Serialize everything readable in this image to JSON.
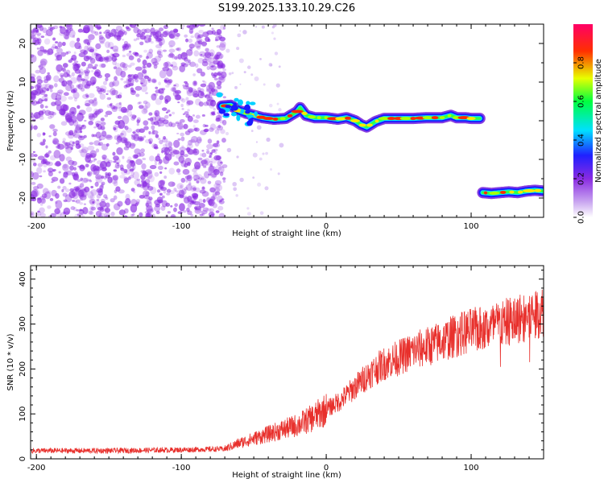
{
  "title": "S199.2025.133.10.29.C26",
  "colors": {
    "noise": "#8a2be2",
    "snr_line": "#e8302c",
    "colorbar_stops": [
      "#ffffff",
      "#8a2be2",
      "#0000ff",
      "#00ffff",
      "#00ff00",
      "#ffff00",
      "#ff0000",
      "#ff0066"
    ]
  },
  "chart_data": [
    {
      "type": "heatmap",
      "xlabel": "Height of straight line (km)",
      "ylabel": "Frequency (Hz)",
      "xlim": [
        -204,
        150
      ],
      "ylim": [
        -25,
        25
      ],
      "xticks": [
        -200,
        -100,
        0,
        100
      ],
      "yticks": [
        20,
        10,
        0,
        -10,
        -20
      ],
      "noise_region_x": [
        -204,
        -70
      ],
      "ridge_main": {
        "x": [
          -72,
          -66,
          -60,
          -52,
          -44,
          -36,
          -28,
          -20,
          -18,
          -14,
          -8,
          0,
          8,
          14,
          20,
          24,
          28,
          34,
          40,
          50,
          60,
          70,
          80,
          86,
          90,
          96,
          100,
          106
        ],
        "y": [
          3.8,
          4.0,
          2.6,
          1.6,
          0.8,
          0.4,
          0.6,
          2.4,
          3.4,
          1.4,
          0.8,
          0.8,
          0.4,
          0.8,
          0.0,
          -1.0,
          -1.6,
          -0.2,
          0.6,
          0.6,
          0.6,
          0.8,
          0.8,
          1.4,
          0.8,
          0.8,
          0.6,
          0.6
        ]
      },
      "ridge_second": {
        "x": [
          108,
          114,
          120,
          126,
          132,
          138,
          144,
          150
        ],
        "y": [
          -18.6,
          -18.8,
          -18.6,
          -18.4,
          -18.6,
          -18.2,
          -18.0,
          -18.2
        ]
      },
      "colorbar": {
        "label": "Normalized spectral amplitude",
        "range": [
          0,
          1
        ],
        "ticks": [
          "0.0",
          "0.2",
          "0.4",
          "0.6",
          "0.8"
        ]
      }
    },
    {
      "type": "line",
      "xlabel": "Height of straight line (km)",
      "ylabel": "SNR (10 * v/v)",
      "xlim": [
        -204,
        150
      ],
      "ylim": [
        0,
        430
      ],
      "xticks": [
        -200,
        -100,
        0,
        100
      ],
      "yticks": [
        0,
        100,
        200,
        300,
        400
      ],
      "trend": {
        "x": [
          -204,
          -150,
          -100,
          -70,
          -60,
          -40,
          -20,
          -10,
          0,
          10,
          20,
          30,
          40,
          50,
          60,
          70,
          80,
          90,
          100,
          110,
          120,
          130,
          140,
          150
        ],
        "y": [
          18,
          18,
          20,
          22,
          35,
          55,
          75,
          90,
          110,
          130,
          160,
          190,
          212,
          225,
          240,
          250,
          262,
          275,
          285,
          290,
          300,
          310,
          320,
          330
        ]
      }
    }
  ]
}
